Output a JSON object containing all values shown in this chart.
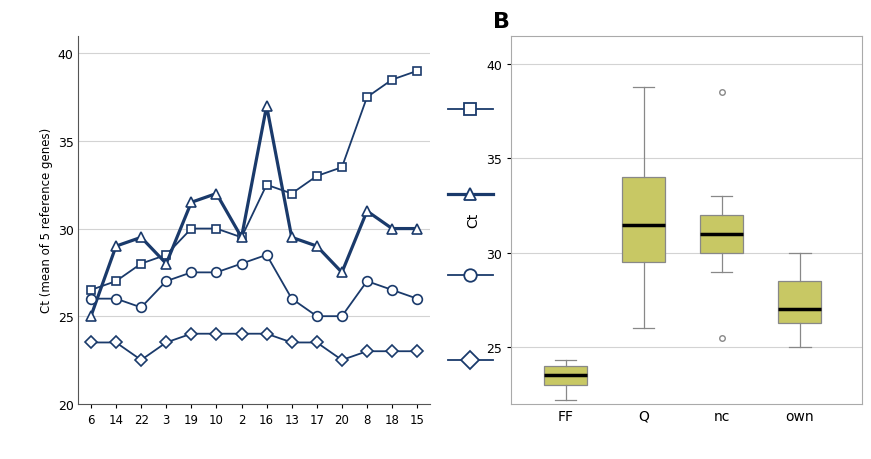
{
  "panel_A": {
    "x_labels": [
      "6",
      "14",
      "22",
      "3",
      "19",
      "10",
      "2",
      "16",
      "13",
      "17",
      "20",
      "8",
      "18",
      "15"
    ],
    "ylim": [
      20,
      41
    ],
    "yticks": [
      20,
      25,
      30,
      35,
      40
    ],
    "ylabel": "Ct (mean of 5 reference genes)",
    "line_color": "#1a3a6b",
    "square_data": [
      26.5,
      27.0,
      28.0,
      28.5,
      30.0,
      30.0,
      29.5,
      32.5,
      32.0,
      33.0,
      33.5,
      37.5,
      38.5,
      39.0
    ],
    "triangle_data": [
      25.0,
      29.0,
      29.5,
      28.0,
      31.5,
      32.0,
      29.5,
      37.0,
      29.5,
      29.0,
      27.5,
      31.0,
      30.0,
      30.0
    ],
    "circle_data": [
      26.0,
      26.0,
      25.5,
      27.0,
      27.5,
      27.5,
      28.0,
      28.5,
      26.0,
      25.0,
      25.0,
      27.0,
      26.5,
      26.0
    ],
    "diamond_data": [
      23.5,
      23.5,
      22.5,
      23.5,
      24.0,
      24.0,
      24.0,
      24.0,
      23.5,
      23.5,
      22.5,
      23.0,
      23.0,
      23.0
    ]
  },
  "panel_legend": {
    "markers": [
      "s",
      "^",
      "o",
      "D"
    ],
    "labels": [
      "",
      "",
      "",
      ""
    ],
    "line_color": "#1a3a6b",
    "lw_thin": 1.2,
    "lw_thick": 2.2
  },
  "panel_B": {
    "title": "B",
    "ylabel": "Ct",
    "xlabels": [
      "FF",
      "Q",
      "nc",
      "own"
    ],
    "ylim": [
      22,
      41.5
    ],
    "yticks": [
      25,
      30,
      35,
      40
    ],
    "box_color": "#c8c864",
    "box_edge_color": "#888888",
    "median_color": "#000000",
    "whisker_color": "#888888",
    "FF": {
      "q1": 23.0,
      "median": 23.5,
      "q3": 24.0,
      "whislo": 22.2,
      "whishi": 24.3,
      "fliers": []
    },
    "Q": {
      "q1": 29.5,
      "median": 31.5,
      "q3": 34.0,
      "whislo": 26.0,
      "whishi": 38.8,
      "fliers": []
    },
    "nc": {
      "q1": 30.0,
      "median": 31.0,
      "q3": 32.0,
      "whislo": 29.0,
      "whishi": 33.0,
      "fliers": [
        25.5,
        38.5
      ]
    },
    "own": {
      "q1": 26.3,
      "median": 27.0,
      "q3": 28.5,
      "whislo": 25.0,
      "whishi": 30.0,
      "fliers": []
    }
  }
}
